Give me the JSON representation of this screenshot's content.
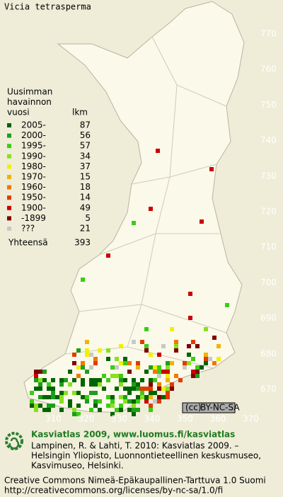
{
  "title": "Vicia tetrasperma",
  "legend": {
    "heading": [
      "Uusimman",
      "havainnon",
      "vuosi"
    ],
    "count_heading": "lkm",
    "entries": [
      {
        "label": "2005-",
        "count": 87,
        "color": "#006400"
      },
      {
        "label": "2000-",
        "count": 56,
        "color": "#1e9e1e"
      },
      {
        "label": "1995-",
        "count": 57,
        "color": "#3ccc14"
      },
      {
        "label": "1990-",
        "count": 34,
        "color": "#8ae020"
      },
      {
        "label": "1980-",
        "count": 37,
        "color": "#f0f000"
      },
      {
        "label": "1970-",
        "count": 15,
        "color": "#f0b400"
      },
      {
        "label": "1960-",
        "count": 18,
        "color": "#f07800"
      },
      {
        "label": "1950-",
        "count": 14,
        "color": "#e03c00"
      },
      {
        "label": "1900-",
        "count": 49,
        "color": "#cc0000"
      },
      {
        "label": "-1899",
        "count": 5,
        "color": "#800000"
      },
      {
        "label": "???",
        "count": 21,
        "color": "#c8c8c8"
      }
    ],
    "total": {
      "label": "Yhteensä",
      "count": 393
    }
  },
  "grid": {
    "y_labels": [
      770,
      760,
      750,
      740,
      730,
      720,
      710,
      700,
      690,
      680,
      670
    ],
    "x_labels": [
      310,
      320,
      330,
      340,
      350,
      360,
      370
    ]
  },
  "license_badge": [
    "(cc)",
    "BY-NC-SA"
  ],
  "footer": {
    "site": "Kasviatlas 2009, www.luomus.fi/kasviatlas",
    "citation": [
      "Lampinen, R. & Lahti, T. 2010: Kasviatlas 2009. –",
      "Helsingin Yliopisto, Luonnontieteellinen keskusmuseo,",
      "Kasvimuseo, Helsinki."
    ],
    "license": [
      "Creative Commons Nimeä-Epäkaupallinen-Tarttuva 1.0 Suomi",
      "http://creativecommons.org/licenses/by-nc-sa/1.0/fi"
    ]
  }
}
